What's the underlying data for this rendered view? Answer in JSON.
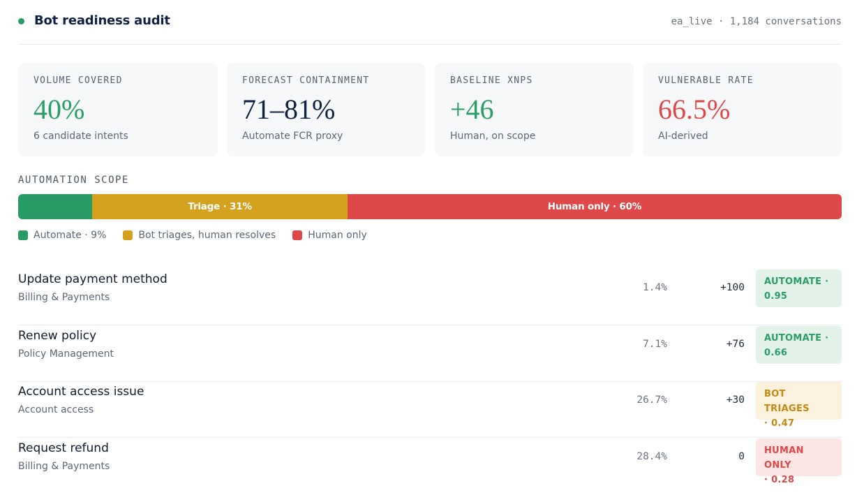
{
  "header": {
    "title": "Bot readiness audit",
    "meta": "ea_live · 1,184 conversations",
    "status_color": "#2a9d67"
  },
  "kpis": [
    {
      "label": "VOLUME COVERED",
      "value": "40%",
      "sub": "6 candidate intents",
      "color": "#2a9d67"
    },
    {
      "label": "FORECAST CONTAINMENT",
      "value": "71–81%",
      "sub": "Automate FCR proxy",
      "color": "#0e2140"
    },
    {
      "label": "BASELINE XNPS",
      "value": "+46",
      "sub": "Human, on scope",
      "color": "#2a9d67"
    },
    {
      "label": "VULNERABLE RATE",
      "value": "66.5%",
      "sub": "AI-derived",
      "color": "#de4848"
    }
  ],
  "scope": {
    "label": "AUTOMATION SCOPE",
    "segments": [
      {
        "name": "Automate",
        "percent": 9,
        "bar_text": "",
        "color": "#2a9d67"
      },
      {
        "name": "Triage",
        "percent": 31,
        "bar_text": "Triage · 31%",
        "color": "#d4a21f"
      },
      {
        "name": "Human only",
        "percent": 60,
        "bar_text": "Human only · 60%",
        "color": "#de4848"
      }
    ],
    "legend": [
      {
        "label": "Automate · 9%",
        "color": "#2a9d67"
      },
      {
        "label": "Bot triages, human resolves",
        "color": "#d4a21f"
      },
      {
        "label": "Human only",
        "color": "#de4848"
      }
    ]
  },
  "intents": [
    {
      "title": "Update payment method",
      "category": "Billing & Payments",
      "share": "1.4%",
      "nps": "+100",
      "badge_line1": "AUTOMATE ·",
      "badge_line2": "0.95",
      "badge_bg": "#e3f3ea",
      "badge_fg": "#2a9d67"
    },
    {
      "title": "Renew policy",
      "category": "Policy Management",
      "share": "7.1%",
      "nps": "+76",
      "badge_line1": "AUTOMATE ·",
      "badge_line2": "0.66",
      "badge_bg": "#e3f3ea",
      "badge_fg": "#2a9d67"
    },
    {
      "title": "Account access issue",
      "category": "Account access",
      "share": "26.7%",
      "nps": "+30",
      "badge_line1": "BOT TRIAGES",
      "badge_line2": "· 0.47",
      "badge_bg": "#fbf1dc",
      "badge_fg": "#c08a12"
    },
    {
      "title": "Request refund",
      "category": "Billing & Payments",
      "share": "28.4%",
      "nps": "0",
      "badge_line1": "HUMAN ONLY",
      "badge_line2": "· 0.28",
      "badge_bg": "#fce6e6",
      "badge_fg": "#de4848"
    }
  ]
}
